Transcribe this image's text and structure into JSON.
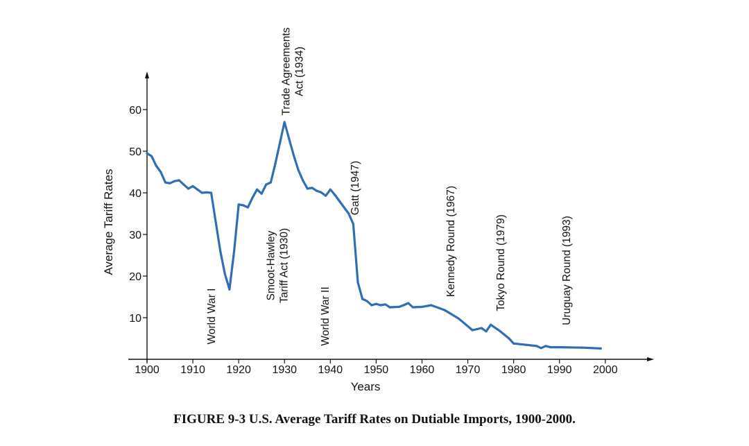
{
  "chart_data": {
    "type": "line",
    "xlabel": "Years",
    "ylabel": "Average Tariff Rates",
    "xlim": [
      1900,
      2010
    ],
    "ylim": [
      0,
      68
    ],
    "x_ticks": [
      "1900",
      "1910",
      "1920",
      "1930",
      "1940",
      "1950",
      "1960",
      "1970",
      "1980",
      "1990",
      "2000"
    ],
    "y_ticks": [
      "10",
      "20",
      "30",
      "40",
      "50",
      "60"
    ],
    "line_color": "#2F6DB5",
    "series": [
      {
        "name": "U.S. Average Tariff Rates on Dutiable Imports",
        "x": [
          1900,
          1901,
          1902,
          1903,
          1904,
          1905,
          1906,
          1907,
          1908,
          1909,
          1910,
          1911,
          1912,
          1913,
          1914,
          1915,
          1916,
          1917,
          1918,
          1919,
          1920,
          1921,
          1922,
          1923,
          1924,
          1925,
          1926,
          1927,
          1928,
          1929,
          1930,
          1931,
          1932,
          1933,
          1934,
          1935,
          1936,
          1937,
          1938,
          1939,
          1940,
          1941,
          1942,
          1943,
          1944,
          1945,
          1946,
          1947,
          1948,
          1949,
          1950,
          1951,
          1952,
          1953,
          1955,
          1956,
          1957,
          1958,
          1960,
          1962,
          1965,
          1968,
          1971,
          1973,
          1974,
          1975,
          1977,
          1979,
          1980,
          1985,
          1986,
          1987,
          1988,
          1990,
          1995,
          1999
        ],
        "values": [
          49.5,
          48.8,
          46.5,
          45.0,
          42.5,
          42.3,
          42.8,
          43.0,
          42.0,
          41.0,
          41.6,
          40.8,
          40.0,
          40.1,
          40.0,
          33.0,
          26.0,
          20.5,
          16.8,
          26.0,
          37.2,
          37.0,
          36.5,
          38.8,
          40.8,
          39.8,
          42.0,
          42.5,
          47.0,
          52.0,
          57.0,
          53.0,
          49.0,
          45.5,
          43.0,
          41.0,
          41.2,
          40.5,
          40.1,
          39.3,
          40.8,
          39.5,
          38.0,
          36.5,
          35.0,
          32.5,
          18.5,
          14.5,
          14.0,
          13.0,
          13.3,
          13.0,
          13.2,
          12.5,
          12.6,
          13.0,
          13.5,
          12.5,
          12.6,
          13.0,
          11.8,
          9.8,
          7.0,
          7.5,
          6.7,
          8.3,
          6.8,
          5.0,
          3.8,
          3.2,
          2.7,
          3.2,
          2.9,
          2.9,
          2.8,
          2.6
        ]
      }
    ],
    "annotations": [
      {
        "id": "ww1",
        "lines": [
          "World War I"
        ]
      },
      {
        "id": "smoot",
        "lines": [
          "Smoot-Hawley",
          "Tariff Act (1930)"
        ]
      },
      {
        "id": "trade",
        "lines": [
          "Trade Agreements",
          "Act (1934)"
        ]
      },
      {
        "id": "ww2",
        "lines": [
          "World War II"
        ]
      },
      {
        "id": "gatt",
        "lines": [
          "Gatt (1947)"
        ]
      },
      {
        "id": "kennedy",
        "lines": [
          "Kennedy Round (1967)"
        ]
      },
      {
        "id": "tokyo",
        "lines": [
          "Tokyo Round (1979)"
        ]
      },
      {
        "id": "uruguay",
        "lines": [
          "Uruguay Round (1993)"
        ]
      }
    ]
  },
  "caption": "FIGURE 9-3 U.S. Average Tariff Rates on Dutiable Imports, 1900-2000."
}
